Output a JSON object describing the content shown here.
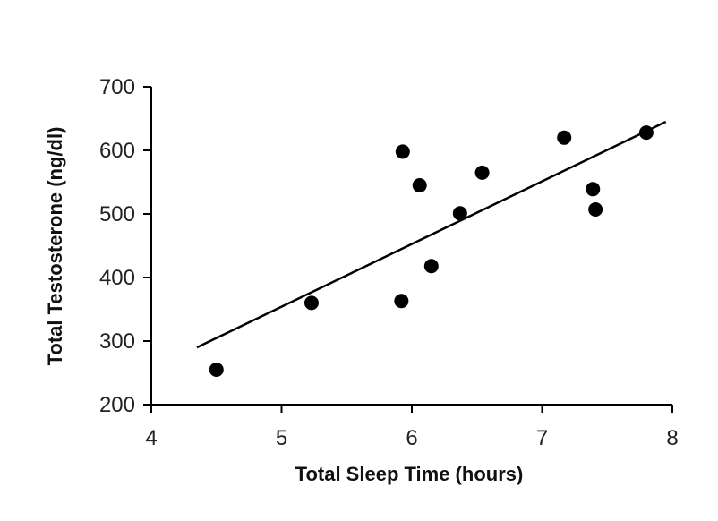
{
  "chart_data": {
    "type": "scatter",
    "title": "",
    "xlabel": "Total Sleep Time (hours)",
    "ylabel": "Total Testosterone (ng/dl)",
    "xlim": [
      4,
      8
    ],
    "ylim": [
      200,
      700
    ],
    "x_ticks": [
      4,
      5,
      6,
      7,
      8
    ],
    "y_ticks": [
      200,
      300,
      400,
      500,
      600,
      700
    ],
    "grid": false,
    "legend": "none",
    "colors": {
      "points": "#000000",
      "line": "#000000",
      "axes": "#000000"
    },
    "series": [
      {
        "points": [
          {
            "x": 4.5,
            "y": 255
          },
          {
            "x": 5.23,
            "y": 360
          },
          {
            "x": 5.92,
            "y": 363
          },
          {
            "x": 5.93,
            "y": 598
          },
          {
            "x": 6.06,
            "y": 545
          },
          {
            "x": 6.15,
            "y": 418
          },
          {
            "x": 6.37,
            "y": 501
          },
          {
            "x": 6.54,
            "y": 565
          },
          {
            "x": 7.17,
            "y": 620
          },
          {
            "x": 7.39,
            "y": 539
          },
          {
            "x": 7.41,
            "y": 507
          },
          {
            "x": 7.8,
            "y": 628
          }
        ]
      }
    ],
    "trendline": {
      "x": [
        4.35,
        7.95
      ],
      "y": [
        290,
        645
      ]
    }
  }
}
